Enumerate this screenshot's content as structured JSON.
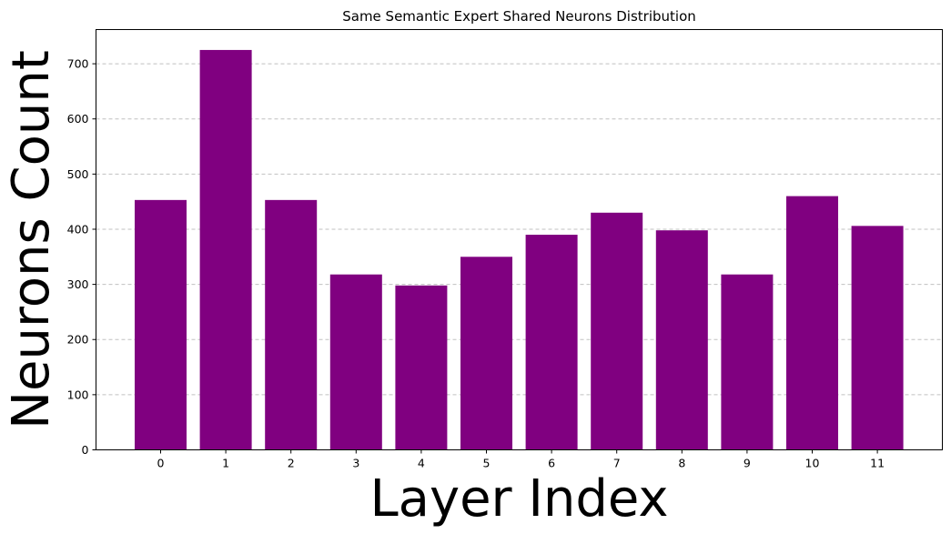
{
  "chart_data": {
    "type": "bar",
    "title": "Same Semantic Expert Shared Neurons Distribution",
    "xlabel": "Layer Index",
    "ylabel": "Neurons Count",
    "categories": [
      "0",
      "1",
      "2",
      "3",
      "4",
      "5",
      "6",
      "7",
      "8",
      "9",
      "10",
      "11"
    ],
    "values": [
      453,
      725,
      453,
      318,
      298,
      350,
      390,
      430,
      398,
      318,
      460,
      406
    ],
    "ylim": [
      0,
      762
    ],
    "yticks": [
      0,
      100,
      200,
      300,
      400,
      500,
      600,
      700
    ],
    "grid": "y-dashed",
    "bar_color": "#800080",
    "grid_color": "#c0c0c0"
  }
}
